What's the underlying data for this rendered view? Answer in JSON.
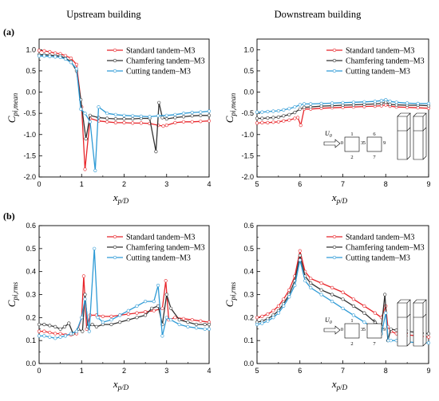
{
  "figure": {
    "col_titles": [
      "Upstream building",
      "Downstream building"
    ],
    "row_labels": [
      "(a)",
      "(b)"
    ]
  },
  "legend_labels": [
    "Standard tandem–M3",
    "Chamfering tandem–M3",
    "Cutting tandem–M3"
  ],
  "colors": {
    "standard": "#e8252a",
    "chamfering": "#333333",
    "cutting": "#2f9bd6",
    "hollow_marker_fill": "#ffffff"
  },
  "chart_data": [
    {
      "id": "a-upstream",
      "type": "line",
      "xlabel": {
        "main": "x",
        "sub": "p/D"
      },
      "ylabel": {
        "main": "C",
        "sub": "pi,mean"
      },
      "xlim": [
        0,
        4
      ],
      "ylim": [
        -2.0,
        1.25
      ],
      "xticks": [
        0,
        1,
        2,
        3,
        4
      ],
      "yticks": [
        -2.0,
        -1.5,
        -1.0,
        -0.5,
        0.0,
        0.5,
        1.0
      ],
      "legend_position": "top-right",
      "series": [
        {
          "name": "Standard tandem–M3",
          "key": "standard",
          "x": [
            0.0,
            0.12,
            0.25,
            0.38,
            0.5,
            0.62,
            0.75,
            0.88,
            1.0,
            1.08,
            1.2,
            1.4,
            1.6,
            1.8,
            2.0,
            2.2,
            2.4,
            2.6,
            2.8,
            2.92,
            3.0,
            3.2,
            3.4,
            3.6,
            3.8,
            4.0
          ],
          "y": [
            0.98,
            0.97,
            0.95,
            0.92,
            0.9,
            0.86,
            0.8,
            0.65,
            -0.35,
            -1.82,
            -0.62,
            -0.68,
            -0.7,
            -0.72,
            -0.72,
            -0.73,
            -0.73,
            -0.74,
            -0.78,
            -0.8,
            -0.78,
            -0.72,
            -0.7,
            -0.7,
            -0.69,
            -0.68
          ]
        },
        {
          "name": "Chamfering tandem–M3",
          "key": "chamfering",
          "x": [
            0.0,
            0.12,
            0.25,
            0.38,
            0.5,
            0.62,
            0.75,
            0.88,
            0.98,
            1.1,
            1.2,
            1.4,
            1.6,
            1.8,
            2.0,
            2.2,
            2.4,
            2.6,
            2.75,
            2.82,
            2.9,
            3.0,
            3.2,
            3.4,
            3.6,
            3.8,
            4.0
          ],
          "y": [
            0.88,
            0.88,
            0.87,
            0.86,
            0.85,
            0.8,
            0.72,
            0.5,
            -0.18,
            -1.1,
            -0.55,
            -0.6,
            -0.62,
            -0.63,
            -0.63,
            -0.63,
            -0.62,
            -0.62,
            -1.4,
            -0.25,
            -0.6,
            -0.63,
            -0.6,
            -0.58,
            -0.56,
            -0.55,
            -0.55
          ]
        },
        {
          "name": "Cutting tandem–M3",
          "key": "cutting",
          "x": [
            0.0,
            0.12,
            0.25,
            0.38,
            0.5,
            0.62,
            0.75,
            0.88,
            0.98,
            1.08,
            1.2,
            1.32,
            1.4,
            1.6,
            1.8,
            2.0,
            2.2,
            2.4,
            2.6,
            2.8,
            3.0,
            3.2,
            3.4,
            3.6,
            3.8,
            4.0
          ],
          "y": [
            0.85,
            0.85,
            0.84,
            0.83,
            0.82,
            0.78,
            0.7,
            0.55,
            -0.4,
            -0.5,
            -0.7,
            -1.85,
            -0.35,
            -0.5,
            -0.53,
            -0.55,
            -0.56,
            -0.57,
            -0.58,
            -0.56,
            -0.55,
            -0.53,
            -0.5,
            -0.48,
            -0.47,
            -0.45
          ]
        }
      ]
    },
    {
      "id": "a-downstream",
      "type": "line",
      "xlabel": {
        "main": "x",
        "sub": "p/D"
      },
      "ylabel": {
        "main": "C",
        "sub": "pi,mean"
      },
      "xlim": [
        5,
        9
      ],
      "ylim": [
        -2.0,
        1.25
      ],
      "xticks": [
        5,
        6,
        7,
        8,
        9
      ],
      "yticks": [
        -2.0,
        -1.5,
        -1.0,
        -0.5,
        0.0,
        0.5,
        1.0
      ],
      "legend_position": "top-right",
      "inset": {
        "flow_label": "U",
        "flow_sub": "0",
        "upstream_labels": [
          "0",
          "1",
          "2",
          "3"
        ],
        "downstream_labels": [
          "5",
          "6",
          "7",
          "9"
        ]
      },
      "series": [
        {
          "name": "Standard tandem–M3",
          "key": "standard",
          "x": [
            5.0,
            5.12,
            5.25,
            5.38,
            5.5,
            5.62,
            5.75,
            5.88,
            5.95,
            6.02,
            6.1,
            6.25,
            6.5,
            6.75,
            7.0,
            7.25,
            7.5,
            7.75,
            7.9,
            8.0,
            8.1,
            8.25,
            8.5,
            8.75,
            9.0
          ],
          "y": [
            -0.73,
            -0.72,
            -0.72,
            -0.71,
            -0.7,
            -0.68,
            -0.66,
            -0.62,
            -0.6,
            -0.78,
            -0.4,
            -0.4,
            -0.38,
            -0.37,
            -0.36,
            -0.35,
            -0.34,
            -0.33,
            -0.32,
            -0.3,
            -0.33,
            -0.35,
            -0.36,
            -0.37,
            -0.38
          ]
        },
        {
          "name": "Chamfering tandem–M3",
          "key": "chamfering",
          "x": [
            5.0,
            5.12,
            5.25,
            5.38,
            5.5,
            5.62,
            5.75,
            5.88,
            6.0,
            6.1,
            6.25,
            6.5,
            6.75,
            7.0,
            7.25,
            7.5,
            7.75,
            7.9,
            8.0,
            8.1,
            8.25,
            8.5,
            8.75,
            9.0
          ],
          "y": [
            -0.62,
            -0.62,
            -0.61,
            -0.6,
            -0.59,
            -0.56,
            -0.53,
            -0.48,
            -0.4,
            -0.36,
            -0.35,
            -0.33,
            -0.32,
            -0.31,
            -0.3,
            -0.29,
            -0.28,
            -0.27,
            -0.24,
            -0.29,
            -0.3,
            -0.31,
            -0.31,
            -0.32
          ]
        },
        {
          "name": "Cutting tandem–M3",
          "key": "cutting",
          "x": [
            5.0,
            5.12,
            5.25,
            5.38,
            5.5,
            5.62,
            5.75,
            5.88,
            6.0,
            6.1,
            6.25,
            6.5,
            6.75,
            7.0,
            7.25,
            7.5,
            7.75,
            7.9,
            8.0,
            8.1,
            8.25,
            8.5,
            8.75,
            9.0
          ],
          "y": [
            -0.47,
            -0.47,
            -0.46,
            -0.45,
            -0.44,
            -0.42,
            -0.39,
            -0.35,
            -0.3,
            -0.28,
            -0.28,
            -0.27,
            -0.26,
            -0.25,
            -0.24,
            -0.23,
            -0.22,
            -0.2,
            -0.18,
            -0.22,
            -0.24,
            -0.26,
            -0.27,
            -0.27
          ]
        }
      ]
    },
    {
      "id": "b-upstream",
      "type": "line",
      "xlabel": {
        "main": "x",
        "sub": "p/D"
      },
      "ylabel": {
        "main": "C",
        "sub": "pi,rms"
      },
      "xlim": [
        0,
        4
      ],
      "ylim": [
        0.0,
        0.6
      ],
      "xticks": [
        0,
        1,
        2,
        3,
        4
      ],
      "yticks": [
        0.0,
        0.1,
        0.2,
        0.3,
        0.4,
        0.5,
        0.6
      ],
      "legend_position": "top-right",
      "series": [
        {
          "name": "Standard tandem–M3",
          "key": "standard",
          "x": [
            0.0,
            0.12,
            0.25,
            0.38,
            0.5,
            0.62,
            0.75,
            0.88,
            1.0,
            1.05,
            1.12,
            1.2,
            1.35,
            1.5,
            1.7,
            1.9,
            2.1,
            2.3,
            2.5,
            2.7,
            2.9,
            2.98,
            3.05,
            3.2,
            3.4,
            3.6,
            3.8,
            4.0
          ],
          "y": [
            0.14,
            0.14,
            0.135,
            0.13,
            0.13,
            0.125,
            0.125,
            0.13,
            0.2,
            0.38,
            0.15,
            0.21,
            0.21,
            0.205,
            0.205,
            0.21,
            0.215,
            0.22,
            0.225,
            0.23,
            0.24,
            0.36,
            0.19,
            0.2,
            0.195,
            0.19,
            0.185,
            0.18
          ]
        },
        {
          "name": "Chamfering tandem–M3",
          "key": "chamfering",
          "x": [
            0.0,
            0.12,
            0.25,
            0.38,
            0.5,
            0.6,
            0.7,
            0.8,
            0.92,
            1.02,
            1.08,
            1.15,
            1.25,
            1.35,
            1.5,
            1.7,
            1.9,
            2.1,
            2.3,
            2.5,
            2.65,
            2.8,
            2.9,
            3.0,
            3.1,
            3.3,
            3.5,
            3.7,
            3.9,
            4.0
          ],
          "y": [
            0.17,
            0.17,
            0.165,
            0.16,
            0.15,
            0.16,
            0.175,
            0.13,
            0.15,
            0.14,
            0.3,
            0.16,
            0.17,
            0.16,
            0.17,
            0.17,
            0.18,
            0.19,
            0.2,
            0.21,
            0.24,
            0.25,
            0.17,
            0.3,
            0.24,
            0.19,
            0.18,
            0.17,
            0.17,
            0.17
          ]
        },
        {
          "name": "Cutting tandem–M3",
          "key": "cutting",
          "x": [
            0.0,
            0.12,
            0.25,
            0.38,
            0.5,
            0.62,
            0.75,
            0.88,
            1.0,
            1.08,
            1.18,
            1.3,
            1.38,
            1.5,
            1.7,
            1.9,
            2.1,
            2.3,
            2.5,
            2.7,
            2.8,
            2.9,
            3.0,
            3.1,
            3.3,
            3.5,
            3.7,
            3.9,
            4.0
          ],
          "y": [
            0.12,
            0.12,
            0.115,
            0.11,
            0.115,
            0.12,
            0.13,
            0.14,
            0.2,
            0.28,
            0.14,
            0.5,
            0.2,
            0.18,
            0.19,
            0.21,
            0.23,
            0.25,
            0.27,
            0.27,
            0.34,
            0.12,
            0.2,
            0.19,
            0.17,
            0.16,
            0.155,
            0.15,
            0.15
          ]
        }
      ]
    },
    {
      "id": "b-downstream",
      "type": "line",
      "xlabel": {
        "main": "x",
        "sub": "p/D"
      },
      "ylabel": {
        "main": "C",
        "sub": "pi,rms"
      },
      "xlim": [
        5,
        9
      ],
      "ylim": [
        0.0,
        0.6
      ],
      "xticks": [
        5,
        6,
        7,
        8,
        9
      ],
      "yticks": [
        0.0,
        0.1,
        0.2,
        0.3,
        0.4,
        0.5,
        0.6
      ],
      "legend_position": "top-right",
      "inset": {
        "flow_label": "U",
        "flow_sub": "0",
        "upstream_labels": [
          "0",
          "1",
          "2",
          "3"
        ],
        "downstream_labels": [
          "5",
          "6",
          "7",
          "9"
        ]
      },
      "series": [
        {
          "name": "Standard tandem–M3",
          "key": "standard",
          "x": [
            5.0,
            5.12,
            5.25,
            5.38,
            5.5,
            5.62,
            5.75,
            5.88,
            6.0,
            6.12,
            6.25,
            6.5,
            6.75,
            7.0,
            7.25,
            7.5,
            7.75,
            7.9,
            8.0,
            8.05,
            8.12,
            8.25,
            8.5,
            8.75,
            9.0
          ],
          "y": [
            0.2,
            0.205,
            0.215,
            0.23,
            0.25,
            0.28,
            0.32,
            0.38,
            0.49,
            0.4,
            0.37,
            0.35,
            0.33,
            0.31,
            0.28,
            0.25,
            0.22,
            0.2,
            0.25,
            0.16,
            0.14,
            0.13,
            0.125,
            0.12,
            0.115
          ]
        },
        {
          "name": "Chamfering tandem–M3",
          "key": "chamfering",
          "x": [
            5.0,
            5.12,
            5.25,
            5.38,
            5.5,
            5.62,
            5.75,
            5.88,
            6.0,
            6.12,
            6.25,
            6.5,
            6.75,
            7.0,
            7.25,
            7.5,
            7.75,
            7.9,
            7.98,
            8.05,
            8.12,
            8.25,
            8.5,
            8.75,
            9.0
          ],
          "y": [
            0.18,
            0.185,
            0.195,
            0.21,
            0.23,
            0.26,
            0.3,
            0.36,
            0.47,
            0.38,
            0.35,
            0.32,
            0.3,
            0.28,
            0.25,
            0.22,
            0.18,
            0.16,
            0.3,
            0.1,
            0.15,
            0.145,
            0.14,
            0.135,
            0.13
          ]
        },
        {
          "name": "Cutting tandem–M3",
          "key": "cutting",
          "x": [
            5.0,
            5.12,
            5.25,
            5.38,
            5.5,
            5.62,
            5.75,
            5.88,
            6.0,
            6.12,
            6.25,
            6.5,
            6.75,
            7.0,
            7.25,
            7.5,
            7.75,
            7.9,
            8.0,
            8.06,
            8.12,
            8.25,
            8.5,
            8.75,
            9.0
          ],
          "y": [
            0.17,
            0.175,
            0.185,
            0.2,
            0.22,
            0.25,
            0.29,
            0.34,
            0.45,
            0.36,
            0.33,
            0.3,
            0.27,
            0.24,
            0.21,
            0.18,
            0.15,
            0.13,
            0.22,
            0.1,
            0.1,
            0.1,
            0.095,
            0.09,
            0.09
          ]
        }
      ]
    }
  ]
}
